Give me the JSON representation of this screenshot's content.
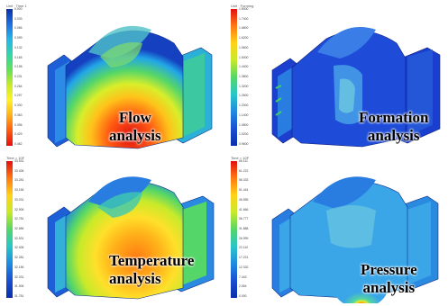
{
  "panels": [
    {
      "header": "Unit · Time 1",
      "ticks": [
        "0.000",
        "0.033",
        "0.066",
        "0.099",
        "0.132",
        "0.165",
        "0.198",
        "0.231",
        "0.264",
        "0.297",
        "0.330",
        "0.363",
        "0.396",
        "0.429",
        "0.462"
      ],
      "caption": [
        "Flow",
        "analysis"
      ],
      "palette": "flow"
    },
    {
      "header": "Unit · Forming",
      "ticks": [
        "1.8000",
        "1.7400",
        "1.6800",
        "1.6200",
        "1.5600",
        "1.5000",
        "1.4400",
        "1.3800",
        "1.3200",
        "1.2600",
        "1.2000",
        "1.1400",
        "1.0800",
        "1.0200",
        "0.9600"
      ],
      "caption": [
        "Formation",
        "analysis"
      ],
      "palette": "formation"
    },
    {
      "header": "Time = 10F",
      "ticks": [
        "33.531",
        "33.406",
        "33.281",
        "33.156",
        "33.031",
        "32.906",
        "32.781",
        "32.656",
        "32.531",
        "32.406",
        "32.281",
        "32.156",
        "32.031",
        "31.906",
        "31.781"
      ],
      "caption": [
        "Temperature",
        "analysis"
      ],
      "palette": "temperature"
    },
    {
      "header": "Time = 10F",
      "ticks": [
        "66.111",
        "61.222",
        "56.333",
        "51.444",
        "46.555",
        "41.666",
        "36.777",
        "31.888",
        "26.999",
        "22.110",
        "17.221",
        "12.332",
        "7.443",
        "2.554",
        "0.000"
      ],
      "caption": [
        "Pressure",
        "analysis"
      ],
      "palette": "pressure"
    }
  ],
  "colors": {
    "scale": [
      "#d7191c",
      "#f46d43",
      "#fdae61",
      "#fee08b",
      "#e6f598",
      "#abdda4",
      "#66c2a5",
      "#3288bd",
      "#2b4fb0"
    ]
  }
}
